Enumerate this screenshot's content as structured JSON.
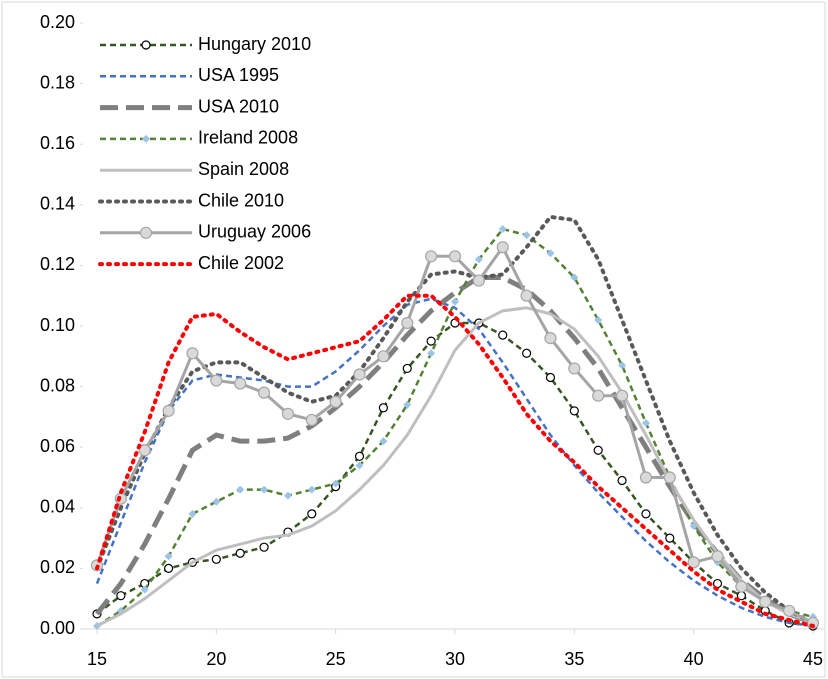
{
  "chart_data": {
    "type": "line",
    "x": [
      15,
      16,
      17,
      18,
      19,
      20,
      21,
      22,
      23,
      24,
      25,
      26,
      27,
      28,
      29,
      30,
      31,
      32,
      33,
      34,
      35,
      36,
      37,
      38,
      39,
      40,
      41,
      42,
      43,
      44,
      45
    ],
    "xlim": [
      15,
      45
    ],
    "xticks": [
      15,
      20,
      25,
      30,
      35,
      40,
      45
    ],
    "ylim": [
      0,
      0.2
    ],
    "yticks": [
      {
        "value": 0,
        "label": "0.00"
      },
      {
        "value": 0.02,
        "label": "0.02"
      },
      {
        "value": 0.04,
        "label": "0.04"
      },
      {
        "value": 0.06,
        "label": "0.06"
      },
      {
        "value": 0.08,
        "label": "0.08"
      },
      {
        "value": 0.1,
        "label": "0.10"
      },
      {
        "value": 0.12,
        "label": "0.12"
      },
      {
        "value": 0.14,
        "label": "0.14"
      },
      {
        "value": 0.16,
        "label": "0.16"
      },
      {
        "value": 0.18,
        "label": "0.18"
      },
      {
        "value": 0.2,
        "label": "0.20"
      }
    ],
    "legend": "upper left",
    "series": [
      {
        "name": "Hungary 2010",
        "color": "#375623",
        "dash": "dash",
        "marker": "circle",
        "values": [
          0.005,
          0.011,
          0.015,
          0.02,
          0.022,
          0.023,
          0.025,
          0.027,
          0.032,
          0.038,
          0.047,
          0.057,
          0.073,
          0.086,
          0.095,
          0.101,
          0.101,
          0.097,
          0.091,
          0.083,
          0.072,
          0.059,
          0.049,
          0.038,
          0.03,
          0.022,
          0.015,
          0.011,
          0.006,
          0.002,
          0.001
        ]
      },
      {
        "name": "USA 1995",
        "color": "#4472c4",
        "dash": "dash",
        "values": [
          0.015,
          0.035,
          0.055,
          0.072,
          0.082,
          0.084,
          0.083,
          0.082,
          0.08,
          0.08,
          0.085,
          0.092,
          0.1,
          0.107,
          0.109,
          0.106,
          0.099,
          0.088,
          0.076,
          0.064,
          0.054,
          0.045,
          0.037,
          0.029,
          0.022,
          0.016,
          0.011,
          0.007,
          0.004,
          0.002,
          0.001
        ]
      },
      {
        "name": "USA 2010",
        "color": "#7f7f7f",
        "dash": "longdash",
        "values": [
          0.005,
          0.015,
          0.028,
          0.043,
          0.059,
          0.064,
          0.062,
          0.062,
          0.063,
          0.067,
          0.073,
          0.08,
          0.088,
          0.097,
          0.105,
          0.111,
          0.116,
          0.116,
          0.112,
          0.105,
          0.096,
          0.086,
          0.073,
          0.06,
          0.047,
          0.035,
          0.025,
          0.016,
          0.01,
          0.005,
          0.002
        ]
      },
      {
        "name": "Ireland 2008",
        "color": "#548235",
        "dash": "dash",
        "marker": "diamond",
        "marker_color": "#9dc3e6",
        "values": [
          0.001,
          0.006,
          0.013,
          0.024,
          0.038,
          0.042,
          0.046,
          0.046,
          0.044,
          0.046,
          0.048,
          0.054,
          0.062,
          0.074,
          0.091,
          0.108,
          0.122,
          0.132,
          0.13,
          0.124,
          0.116,
          0.102,
          0.087,
          0.068,
          0.05,
          0.034,
          0.022,
          0.014,
          0.009,
          0.006,
          0.004
        ]
      },
      {
        "name": "Spain 2008",
        "color": "#bfbfbf",
        "dash": "solid",
        "values": [
          0.001,
          0.005,
          0.01,
          0.016,
          0.022,
          0.026,
          0.028,
          0.03,
          0.031,
          0.034,
          0.039,
          0.046,
          0.054,
          0.064,
          0.077,
          0.092,
          0.101,
          0.105,
          0.106,
          0.104,
          0.099,
          0.09,
          0.078,
          0.064,
          0.049,
          0.036,
          0.025,
          0.016,
          0.009,
          0.005,
          0.002
        ]
      },
      {
        "name": "Chile 2010",
        "color": "#595959",
        "dash": "dot",
        "values": [
          0.02,
          0.04,
          0.058,
          0.073,
          0.085,
          0.088,
          0.088,
          0.083,
          0.078,
          0.075,
          0.077,
          0.085,
          0.096,
          0.108,
          0.117,
          0.118,
          0.116,
          0.117,
          0.126,
          0.136,
          0.135,
          0.122,
          0.102,
          0.082,
          0.062,
          0.045,
          0.031,
          0.02,
          0.012,
          0.006,
          0.002
        ]
      },
      {
        "name": "Uruguay 2006",
        "color": "#a5a5a5",
        "dash": "solid",
        "marker": "circle",
        "marker_color": "#d9d9d9",
        "values": [
          0.021,
          0.043,
          0.059,
          0.072,
          0.091,
          0.082,
          0.081,
          0.078,
          0.071,
          0.069,
          0.075,
          0.084,
          0.09,
          0.101,
          0.123,
          0.123,
          0.115,
          0.126,
          0.11,
          0.096,
          0.086,
          0.077,
          0.077,
          0.05,
          0.05,
          0.022,
          0.024,
          0.014,
          0.009,
          0.006,
          0.002
        ]
      },
      {
        "name": "Chile 2002",
        "color": "#ff0000",
        "dash": "dot",
        "values": [
          0.02,
          0.045,
          0.065,
          0.088,
          0.103,
          0.104,
          0.098,
          0.093,
          0.089,
          0.091,
          0.093,
          0.095,
          0.102,
          0.11,
          0.11,
          0.103,
          0.094,
          0.083,
          0.071,
          0.062,
          0.055,
          0.047,
          0.04,
          0.033,
          0.026,
          0.019,
          0.013,
          0.009,
          0.005,
          0.003,
          0.001
        ]
      }
    ]
  }
}
